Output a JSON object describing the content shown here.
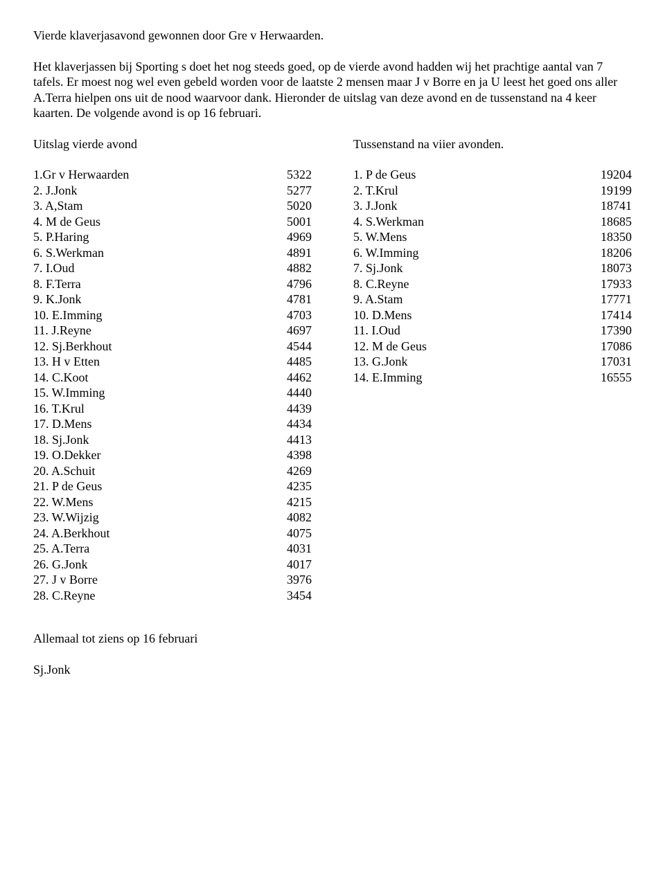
{
  "title": "Vierde klaverjasavond gewonnen door Gre v Herwaarden.",
  "paragraph": "Het klaverjassen bij Sporting s doet het nog steeds goed, op de vierde avond hadden wij het prachtige aantal van 7 tafels. Er moest nog wel even gebeld worden voor de laatste 2 mensen maar J v Borre en ja U leest het goed ons aller A.Terra hielpen ons uit de nood waarvoor dank. Hieronder de uitslag van deze avond en de tussenstand na 4 keer kaarten. De volgende avond is op 16 februari.",
  "left": {
    "heading": "Uitslag vierde avond",
    "rows": [
      {
        "name": "1.Gr v Herwaarden",
        "score": "5322"
      },
      {
        "name": "2. J.Jonk",
        "score": "5277"
      },
      {
        "name": "3. A,Stam",
        "score": "5020"
      },
      {
        "name": "4. M de Geus",
        "score": "5001"
      },
      {
        "name": "5. P.Haring",
        "score": "4969"
      },
      {
        "name": "6. S.Werkman",
        "score": "4891"
      },
      {
        "name": "7. I.Oud",
        "score": "4882"
      },
      {
        "name": "8. F.Terra",
        "score": "4796"
      },
      {
        "name": "9. K.Jonk",
        "score": "4781"
      },
      {
        "name": "10. E.Imming",
        "score": "4703"
      },
      {
        "name": "11. J.Reyne",
        "score": "4697"
      },
      {
        "name": "12. Sj.Berkhout",
        "score": "4544"
      },
      {
        "name": "13. H v Etten",
        "score": "4485"
      },
      {
        "name": "14. C.Koot",
        "score": "4462"
      },
      {
        "name": "15. W.Imming",
        "score": "4440"
      },
      {
        "name": "16. T.Krul",
        "score": "4439"
      },
      {
        "name": "17. D.Mens",
        "score": "4434"
      },
      {
        "name": "18. Sj.Jonk",
        "score": "4413"
      },
      {
        "name": "19. O.Dekker",
        "score": "4398"
      },
      {
        "name": "20. A.Schuit",
        "score": "4269"
      },
      {
        "name": "21. P de Geus",
        "score": "4235"
      },
      {
        "name": "22. W.Mens",
        "score": "4215"
      },
      {
        "name": "23. W.Wijzig",
        "score": "4082"
      },
      {
        "name": "24. A.Berkhout",
        "score": "4075"
      },
      {
        "name": "25. A.Terra",
        "score": "4031"
      },
      {
        "name": "26. G.Jonk",
        "score": "4017"
      },
      {
        "name": "27. J v Borre",
        "score": "3976"
      },
      {
        "name": "28. C.Reyne",
        "score": "3454"
      }
    ]
  },
  "right": {
    "heading": "Tussenstand na viier avonden.",
    "rows": [
      {
        "name": "1. P de Geus",
        "score": "19204"
      },
      {
        "name": "2. T.Krul",
        "score": "19199"
      },
      {
        "name": "3. J.Jonk",
        "score": "18741"
      },
      {
        "name": "4. S.Werkman",
        "score": "18685"
      },
      {
        "name": "5. W.Mens",
        "score": "18350"
      },
      {
        "name": "6. W.Imming",
        "score": "18206"
      },
      {
        "name": "7. Sj.Jonk",
        "score": "18073"
      },
      {
        "name": "8. C.Reyne",
        "score": "17933"
      },
      {
        "name": "9. A.Stam",
        "score": "17771"
      },
      {
        "name": "10. D.Mens",
        "score": "17414"
      },
      {
        "name": "11. I.Oud",
        "score": "17390"
      },
      {
        "name": "12. M de Geus",
        "score": "17086"
      },
      {
        "name": "13. G.Jonk",
        "score": "17031"
      },
      {
        "name": "14. E.Imming",
        "score": "16555"
      }
    ]
  },
  "footer1": "Allemaal tot ziens op 16 februari",
  "footer2": "Sj.Jonk"
}
